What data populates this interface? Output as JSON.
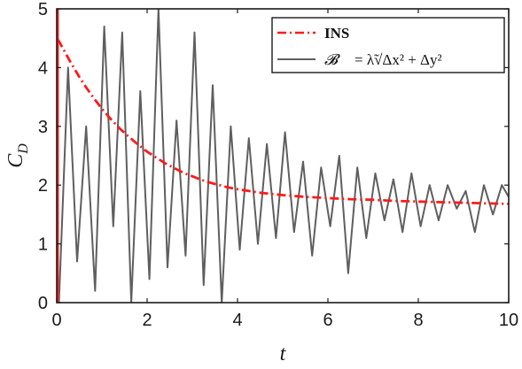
{
  "chart_data": {
    "type": "line",
    "xlabel": "t",
    "ylabel": "C_D",
    "xlim": [
      0,
      10
    ],
    "ylim": [
      0,
      5
    ],
    "x_ticks": [
      "0",
      "2",
      "4",
      "6",
      "8",
      "10"
    ],
    "y_ticks": [
      "0",
      "1",
      "2",
      "3",
      "4",
      "5"
    ],
    "grid": false,
    "legend_position": "top-right",
    "series": [
      {
        "name": "INS",
        "style": "dash-dot",
        "color": "#ff1a1a",
        "x": [
          0.02,
          0.05,
          0.1,
          0.2,
          0.3,
          0.4,
          0.5,
          0.6,
          0.8,
          1.0,
          1.2,
          1.4,
          1.6,
          1.8,
          2.0,
          2.2,
          2.4,
          2.6,
          2.8,
          3.0,
          3.2,
          3.4,
          3.6,
          3.8,
          4.0,
          4.5,
          5.0,
          5.5,
          6.0,
          6.5,
          7.0,
          7.5,
          8.0,
          8.5,
          9.0,
          9.5,
          10.0
        ],
        "y": [
          4.48,
          4.45,
          4.38,
          4.24,
          4.1,
          3.97,
          3.84,
          3.72,
          3.5,
          3.3,
          3.12,
          2.96,
          2.82,
          2.69,
          2.57,
          2.47,
          2.37,
          2.29,
          2.21,
          2.15,
          2.09,
          2.04,
          2.0,
          1.96,
          1.93,
          1.87,
          1.83,
          1.8,
          1.78,
          1.76,
          1.75,
          1.73,
          1.72,
          1.71,
          1.7,
          1.69,
          1.68
        ]
      },
      {
        "name": "B = λ̃ sqrt(Δx² + Δy²)",
        "style": "solid",
        "color": "#5f5f5f",
        "x": [
          0.05,
          0.25,
          0.45,
          0.65,
          0.85,
          1.05,
          1.25,
          1.45,
          1.65,
          1.85,
          2.05,
          2.25,
          2.45,
          2.65,
          2.85,
          3.05,
          3.25,
          3.45,
          3.65,
          3.85,
          4.05,
          4.25,
          4.45,
          4.65,
          4.85,
          5.05,
          5.25,
          5.45,
          5.65,
          5.85,
          6.05,
          6.25,
          6.45,
          6.65,
          6.85,
          7.05,
          7.25,
          7.45,
          7.65,
          7.85,
          8.05,
          8.25,
          8.45,
          8.65,
          8.85,
          9.05,
          9.25,
          9.45,
          9.65,
          9.85,
          10.0
        ],
        "y": [
          0.0,
          4.0,
          0.7,
          3.0,
          0.2,
          4.7,
          1.3,
          4.6,
          0.0,
          3.6,
          0.4,
          5.0,
          0.6,
          3.1,
          0.8,
          4.6,
          0.3,
          3.7,
          0.0,
          3.0,
          0.9,
          2.8,
          1.0,
          2.7,
          1.1,
          2.9,
          1.2,
          2.4,
          0.8,
          2.3,
          1.3,
          2.5,
          0.5,
          2.3,
          1.1,
          2.2,
          1.4,
          2.1,
          1.2,
          2.2,
          1.3,
          2.0,
          1.4,
          2.0,
          1.6,
          1.9,
          1.2,
          2.0,
          1.5,
          2.0,
          1.8
        ]
      }
    ]
  },
  "legend": {
    "ins_label": "INS",
    "b_symbol": "𝓑",
    "b_formula": "= λ̃√Δx² + Δy²"
  },
  "colors": {
    "ins": "#ff1a1a",
    "b": "#5f5f5f",
    "axis": "#1a1a1a"
  }
}
